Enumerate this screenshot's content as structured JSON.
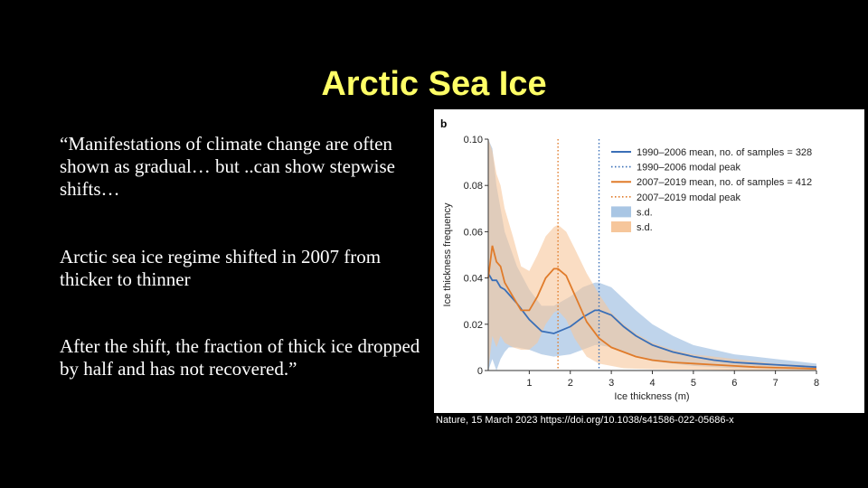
{
  "slide": {
    "title": "Arctic Sea Ice",
    "paragraphs": [
      "“Manifestations of climate change are often shown as gradual… but ..can show stepwise shifts…",
      "Arctic sea ice regime shifted in 2007 from thicker to thinner",
      "After the shift, the fraction of thick ice dropped by half and has not recovered.”"
    ],
    "caption": "Nature, 15 March 2023 https://doi.org/10.1038/s41586-022-05686-x"
  },
  "chart_data": {
    "type": "line",
    "panel_label": "b",
    "xlabel": "Ice thickness (m)",
    "ylabel": "Ice thickness frequency",
    "xlim": [
      0,
      8
    ],
    "ylim": [
      0,
      0.1
    ],
    "xticks": [
      1,
      2,
      3,
      4,
      5,
      6,
      7,
      8
    ],
    "yticks": [
      0,
      0.02,
      0.04,
      0.06,
      0.08,
      0.1
    ],
    "ytick_labels": [
      "0",
      "0.02",
      "0.04",
      "0.06",
      "0.08",
      "0.10"
    ],
    "legend_position": "top-right",
    "legend_labels": [
      "1990–2006 mean, no. of samples = 328",
      "1990–2006 modal peak",
      "2007–2019 mean, no. of samples = 412",
      "2007–2019 modal peak",
      "s.d.",
      "s.d."
    ],
    "colors": {
      "blue": "#3a6fb7",
      "blue_band": "#a9c6e4",
      "orange": "#e07b2a",
      "orange_band": "#f6c69b"
    },
    "series": [
      {
        "name": "1990–2006 mean, no. of samples = 328",
        "color": "#3a6fb7",
        "x": [
          0,
          0.1,
          0.2,
          0.3,
          0.4,
          0.5,
          0.7,
          1.0,
          1.3,
          1.6,
          2.0,
          2.3,
          2.6,
          2.7,
          3.0,
          3.3,
          3.6,
          4.0,
          4.5,
          5.0,
          5.5,
          6.0,
          6.5,
          7.0,
          7.5,
          8.0
        ],
        "y": [
          0.042,
          0.039,
          0.039,
          0.036,
          0.035,
          0.033,
          0.029,
          0.022,
          0.017,
          0.016,
          0.019,
          0.023,
          0.026,
          0.026,
          0.024,
          0.019,
          0.015,
          0.011,
          0.008,
          0.006,
          0.0045,
          0.0035,
          0.003,
          0.0025,
          0.002,
          0.0015
        ],
        "lower": [
          0,
          0.005,
          0,
          0.005,
          0.008,
          0.01,
          0.01,
          0.009,
          0.007,
          0.006,
          0.007,
          0.009,
          0.011,
          0.011,
          0.01,
          0.008,
          0.006,
          0.004,
          0.003,
          0.002,
          0.0015,
          0.001,
          0.001,
          0.0008,
          0.0006,
          0.0005
        ],
        "upper": [
          0.1,
          0.096,
          0.08,
          0.07,
          0.06,
          0.055,
          0.045,
          0.035,
          0.028,
          0.028,
          0.032,
          0.036,
          0.038,
          0.038,
          0.036,
          0.031,
          0.026,
          0.02,
          0.015,
          0.011,
          0.009,
          0.007,
          0.006,
          0.005,
          0.004,
          0.003
        ],
        "modal_peak": 2.7
      },
      {
        "name": "2007–2019 mean, no. of samples = 412",
        "color": "#e07b2a",
        "x": [
          0,
          0.1,
          0.2,
          0.3,
          0.4,
          0.6,
          0.8,
          1.0,
          1.2,
          1.4,
          1.6,
          1.7,
          1.9,
          2.1,
          2.4,
          2.7,
          3.0,
          3.3,
          3.6,
          4.0,
          4.5,
          5.0,
          5.5,
          6.0,
          6.5,
          7.0,
          7.5,
          8.0
        ],
        "y": [
          0.04,
          0.054,
          0.047,
          0.045,
          0.038,
          0.032,
          0.026,
          0.026,
          0.032,
          0.04,
          0.044,
          0.044,
          0.041,
          0.033,
          0.021,
          0.014,
          0.01,
          0.008,
          0.006,
          0.0045,
          0.0035,
          0.003,
          0.0025,
          0.002,
          0.0015,
          0.0012,
          0.001,
          0.0008
        ],
        "lower": [
          0,
          0.015,
          0.01,
          0.015,
          0.012,
          0.01,
          0.009,
          0.009,
          0.012,
          0.02,
          0.025,
          0.026,
          0.022,
          0.014,
          0.006,
          0.003,
          0.002,
          0.001,
          0.0008,
          0.0006,
          0.0005,
          0.0004,
          0.0003,
          0.0002,
          0.0002,
          0.0001,
          0.0001,
          0.0001
        ],
        "upper": [
          0.1,
          0.095,
          0.085,
          0.08,
          0.07,
          0.058,
          0.045,
          0.043,
          0.05,
          0.058,
          0.062,
          0.063,
          0.06,
          0.053,
          0.042,
          0.033,
          0.025,
          0.02,
          0.016,
          0.012,
          0.009,
          0.007,
          0.006,
          0.005,
          0.004,
          0.003,
          0.0025,
          0.002
        ],
        "modal_peak": 1.7
      }
    ]
  }
}
